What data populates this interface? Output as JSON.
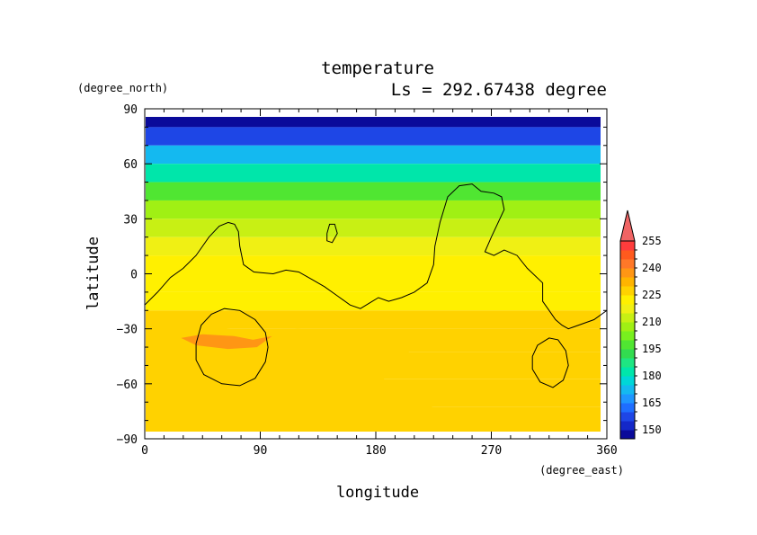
{
  "chart_data": {
    "type": "heatmap",
    "title": "temperature",
    "subtitle": "Ls = 292.67438 degree",
    "xlabel": "longitude",
    "ylabel": "latitude",
    "x_unit": "(degree_east)",
    "y_unit": "(degree_north)",
    "xlim": [
      0,
      360
    ],
    "ylim": [
      -90,
      90
    ],
    "xticks": [
      0,
      90,
      180,
      270,
      360
    ],
    "yticks": [
      90,
      60,
      30,
      0,
      -30,
      -60,
      -90
    ],
    "grid": false,
    "colorbar": {
      "levels": [
        145,
        150,
        155,
        160,
        165,
        170,
        175,
        180,
        185,
        190,
        195,
        200,
        205,
        210,
        215,
        220,
        225,
        230,
        235,
        240,
        245,
        250,
        255,
        260
      ],
      "labels": [
        150,
        165,
        180,
        195,
        210,
        225,
        240,
        255
      ],
      "colors": [
        "#0a0a9a",
        "#1428c8",
        "#1e46e6",
        "#1e6eff",
        "#1e96ff",
        "#14b9f0",
        "#00d7d7",
        "#00e6aa",
        "#1ee682",
        "#32dc50",
        "#50e632",
        "#78f01e",
        "#a0f014",
        "#c8f014",
        "#f0f014",
        "#fff000",
        "#ffd200",
        "#ffb400",
        "#ff9614",
        "#ff7828",
        "#ff5a1e",
        "#ff3c3c",
        "#f06464"
      ],
      "extend": "max"
    },
    "zonal_profile": [
      {
        "lat": 85,
        "value": 145
      },
      {
        "lat": 75,
        "value": 157
      },
      {
        "lat": 65,
        "value": 170
      },
      {
        "lat": 55,
        "value": 182
      },
      {
        "lat": 45,
        "value": 195
      },
      {
        "lat": 35,
        "value": 205
      },
      {
        "lat": 25,
        "value": 212
      },
      {
        "lat": 15,
        "value": 217
      },
      {
        "lat": 5,
        "value": 220
      },
      {
        "lat": -5,
        "value": 222
      },
      {
        "lat": -15,
        "value": 224
      },
      {
        "lat": -25,
        "value": 226
      },
      {
        "lat": -35,
        "value": 228
      },
      {
        "lat": -50,
        "value": 228
      },
      {
        "lat": -65,
        "value": 228
      },
      {
        "lat": -80,
        "value": 228
      }
    ],
    "contours": [
      {
        "level": 215,
        "points": [
          [
            0,
            -17
          ],
          [
            10,
            -10
          ],
          [
            20,
            -2
          ],
          [
            30,
            3
          ],
          [
            40,
            10
          ],
          [
            50,
            20
          ],
          [
            58,
            26
          ],
          [
            65,
            28
          ],
          [
            70,
            27
          ],
          [
            73,
            23
          ],
          [
            74,
            15
          ],
          [
            77,
            5
          ],
          [
            85,
            1
          ],
          [
            100,
            0
          ],
          [
            110,
            2
          ],
          [
            120,
            1
          ],
          [
            130,
            -3
          ],
          [
            140,
            -7
          ],
          [
            150,
            -12
          ],
          [
            160,
            -17
          ],
          [
            168,
            -19
          ],
          [
            175,
            -16
          ],
          [
            182,
            -13
          ],
          [
            190,
            -15
          ],
          [
            200,
            -13
          ],
          [
            210,
            -10
          ],
          [
            220,
            -5
          ],
          [
            225,
            5
          ],
          [
            226,
            15
          ],
          [
            230,
            28
          ],
          [
            236,
            42
          ],
          [
            245,
            48
          ],
          [
            255,
            49
          ],
          [
            262,
            45
          ],
          [
            272,
            44
          ],
          [
            278,
            42
          ],
          [
            280,
            35
          ],
          [
            270,
            20
          ],
          [
            265,
            12
          ],
          [
            272,
            10
          ],
          [
            280,
            13
          ],
          [
            290,
            10
          ],
          [
            298,
            3
          ],
          [
            310,
            -5
          ],
          [
            310,
            -15
          ],
          [
            315,
            -20
          ],
          [
            320,
            -25
          ],
          [
            325,
            -28
          ],
          [
            330,
            -30
          ],
          [
            338,
            -28
          ],
          [
            350,
            -25
          ],
          [
            360,
            -20
          ]
        ]
      },
      {
        "level": 215,
        "points": [
          [
            142,
            22
          ],
          [
            142,
            18
          ],
          [
            146,
            17
          ],
          [
            150,
            22
          ],
          [
            148,
            27
          ],
          [
            144,
            27
          ],
          [
            142,
            22
          ]
        ]
      },
      {
        "level": 230,
        "points": [
          [
            40,
            -38
          ],
          [
            44,
            -28
          ],
          [
            52,
            -22
          ],
          [
            62,
            -19
          ],
          [
            74,
            -20
          ],
          [
            86,
            -25
          ],
          [
            94,
            -32
          ],
          [
            96,
            -40
          ],
          [
            94,
            -48
          ],
          [
            86,
            -57
          ],
          [
            74,
            -61
          ],
          [
            60,
            -60
          ],
          [
            46,
            -55
          ],
          [
            40,
            -47
          ],
          [
            40,
            -38
          ]
        ]
      },
      {
        "level": 220,
        "points": [
          [
            302,
            -45
          ],
          [
            306,
            -39
          ],
          [
            315,
            -35
          ],
          [
            322,
            -36
          ],
          [
            328,
            -42
          ],
          [
            330,
            -50
          ],
          [
            326,
            -58
          ],
          [
            318,
            -62
          ],
          [
            308,
            -59
          ],
          [
            302,
            -52
          ],
          [
            302,
            -45
          ]
        ]
      }
    ],
    "warm_patches": [
      {
        "value": 228,
        "points": [
          [
            0,
            -30
          ],
          [
            20,
            -29
          ],
          [
            45,
            -28
          ],
          [
            65,
            -30
          ],
          [
            90,
            -32
          ],
          [
            120,
            -30
          ],
          [
            145,
            -31
          ],
          [
            170,
            -33
          ],
          [
            190,
            -34
          ],
          [
            210,
            -36
          ],
          [
            225,
            -37
          ],
          [
            210,
            -42
          ],
          [
            195,
            -47
          ],
          [
            185,
            -55
          ],
          [
            195,
            -62
          ],
          [
            210,
            -70
          ],
          [
            230,
            -73
          ],
          [
            210,
            -77
          ],
          [
            190,
            -80
          ],
          [
            180,
            -85
          ],
          [
            0,
            -85
          ],
          [
            0,
            -30
          ]
        ]
      },
      {
        "value": 238,
        "points": [
          [
            28,
            -35
          ],
          [
            45,
            -33
          ],
          [
            70,
            -34
          ],
          [
            85,
            -36
          ],
          [
            100,
            -34
          ],
          [
            88,
            -40
          ],
          [
            65,
            -41
          ],
          [
            40,
            -39
          ],
          [
            28,
            -35
          ]
        ]
      }
    ]
  }
}
